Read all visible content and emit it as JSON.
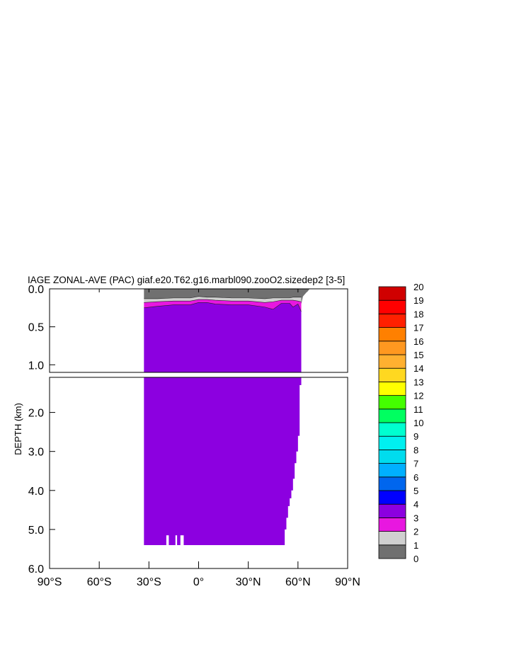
{
  "chart_data": {
    "type": "area",
    "title": "IAGE ZONAL-AVE (PAC) giaf.e20.T62.g16.marbl090.zooO2.sizedep2 [3-5]",
    "ylabel": "DEPTH (km)",
    "xlabel": "",
    "x_ticks": [
      "90°S",
      "60°S",
      "30°S",
      "0°",
      "30°N",
      "60°N",
      "90°N"
    ],
    "x_tick_values": [
      -90,
      -60,
      -30,
      0,
      30,
      60,
      90
    ],
    "y_ticks_upper": [
      "0.0",
      "0.5",
      "1.0"
    ],
    "y_tick_values_upper": [
      0.0,
      0.5,
      1.0
    ],
    "y_ticks_lower": [
      "2.0",
      "3.0",
      "4.0",
      "5.0",
      "6.0"
    ],
    "y_tick_values_lower": [
      2.0,
      3.0,
      4.0,
      5.0,
      6.0
    ],
    "xlim": [
      -90,
      90
    ],
    "ylim_upper": [
      0,
      1.1
    ],
    "ylim_lower": [
      1.1,
      6.0
    ],
    "colorbar": {
      "levels": [
        "0",
        "1",
        "2",
        "3",
        "4",
        "5",
        "6",
        "7",
        "8",
        "9",
        "10",
        "11",
        "12",
        "13",
        "14",
        "15",
        "16",
        "17",
        "18",
        "19",
        "20"
      ],
      "colors": [
        "#707070",
        "#d0d0d0",
        "#e817e0",
        "#8c00e0",
        "#0000ff",
        "#0066ee",
        "#00b0ff",
        "#00dcee",
        "#00f0f0",
        "#00ffd0",
        "#00ff60",
        "#44ff00",
        "#ffff00",
        "#ffd820",
        "#ffb030",
        "#ff9820",
        "#ff8000",
        "#ff2000",
        "#ff0000",
        "#d00000"
      ]
    },
    "region": {
      "lat_south": -33,
      "lat_north_surface": 67,
      "zone_color": "#8c00e0",
      "age0_color": "#707070",
      "age1_color": "#d0d0d0",
      "age2_color": "#e817e0",
      "depth_layers": [
        {
          "lat": -33,
          "age1_top": 0.13,
          "age2_top": 0.18,
          "age3_top": 0.25
        },
        {
          "lat": -25,
          "age1_top": 0.13,
          "age2_top": 0.17,
          "age3_top": 0.23
        },
        {
          "lat": -15,
          "age1_top": 0.12,
          "age2_top": 0.16,
          "age3_top": 0.21
        },
        {
          "lat": -5,
          "age1_top": 0.12,
          "age2_top": 0.16,
          "age3_top": 0.21
        },
        {
          "lat": 0,
          "age1_top": 0.1,
          "age2_top": 0.14,
          "age3_top": 0.18
        },
        {
          "lat": 5,
          "age1_top": 0.11,
          "age2_top": 0.14,
          "age3_top": 0.18
        },
        {
          "lat": 10,
          "age1_top": 0.11,
          "age2_top": 0.15,
          "age3_top": 0.2
        },
        {
          "lat": 20,
          "age1_top": 0.12,
          "age2_top": 0.16,
          "age3_top": 0.21
        },
        {
          "lat": 30,
          "age1_top": 0.12,
          "age2_top": 0.16,
          "age3_top": 0.21
        },
        {
          "lat": 40,
          "age1_top": 0.13,
          "age2_top": 0.18,
          "age3_top": 0.24
        },
        {
          "lat": 45,
          "age1_top": 0.12,
          "age2_top": 0.17,
          "age3_top": 0.27
        },
        {
          "lat": 50,
          "age1_top": 0.12,
          "age2_top": 0.15,
          "age3_top": 0.19
        },
        {
          "lat": 55,
          "age1_top": 0.12,
          "age2_top": 0.15,
          "age3_top": 0.19
        },
        {
          "lat": 57,
          "age1_top": 0.11,
          "age2_top": 0.15,
          "age3_top": 0.24
        },
        {
          "lat": 60,
          "age1_top": 0.11,
          "age2_top": 0.16,
          "age3_top": 0.2
        },
        {
          "lat": 62,
          "age1_top": 0.11,
          "age2_top": 0.17,
          "age3_top": 0.3
        }
      ],
      "bottom_profile": [
        {
          "lat": 52,
          "depth": 5.4
        },
        {
          "lat": 53,
          "depth": 5.0
        },
        {
          "lat": 54,
          "depth": 4.7
        },
        {
          "lat": 55,
          "depth": 4.4
        },
        {
          "lat": 56,
          "depth": 4.2
        },
        {
          "lat": 57,
          "depth": 4.0
        },
        {
          "lat": 58,
          "depth": 3.7
        },
        {
          "lat": 59,
          "depth": 3.3
        },
        {
          "lat": 60,
          "depth": 3.0
        },
        {
          "lat": 61,
          "depth": 2.6
        },
        {
          "lat": 62,
          "depth": 1.3
        }
      ],
      "southern_floor_depth": 5.4,
      "gaps": [
        {
          "lat_from": -19.5,
          "lat_to": -18,
          "depth_from": 5.15
        },
        {
          "lat_from": -14,
          "lat_to": -13,
          "depth_from": 5.15
        },
        {
          "lat_from": -11,
          "lat_to": -9,
          "depth_from": 5.15
        }
      ],
      "surface_shelf": [
        {
          "lat": 62,
          "depth": 0.2
        },
        {
          "lat": 63,
          "depth": 0.1
        },
        {
          "lat": 65,
          "depth": 0.05
        },
        {
          "lat": 66,
          "depth": 0.03
        },
        {
          "lat": 67,
          "depth": 0.0
        }
      ]
    }
  }
}
